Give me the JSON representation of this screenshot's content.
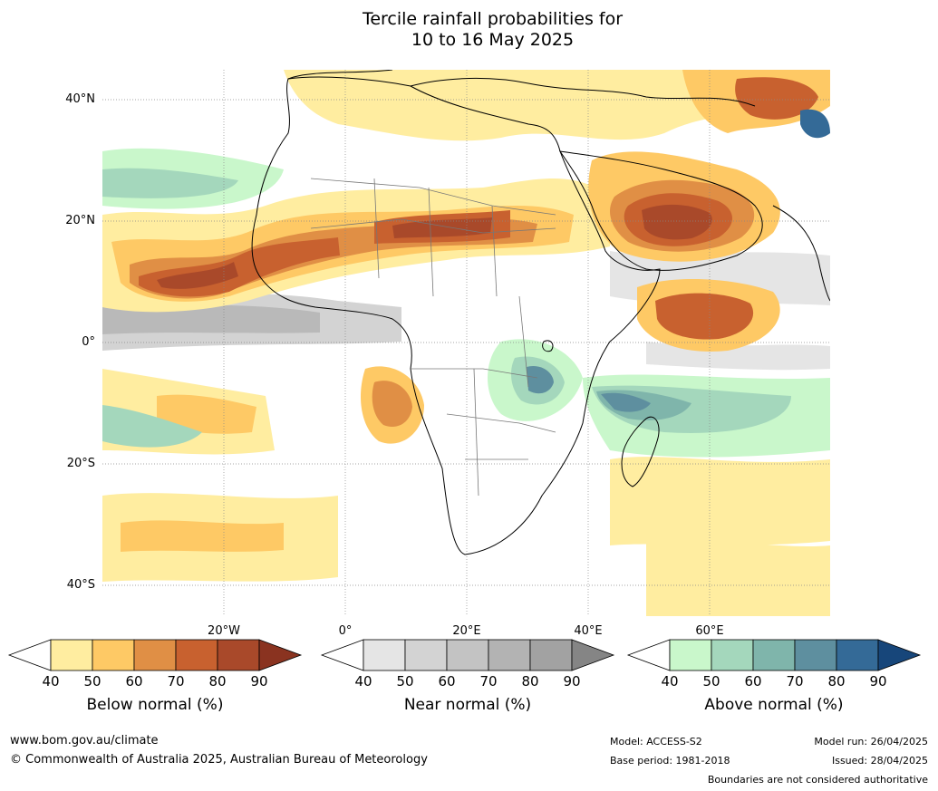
{
  "title": {
    "line1": "Tercile rainfall probabilities for",
    "line2": "10 to 16 May 2025"
  },
  "map": {
    "lat_labels": [
      "40°N",
      "20°N",
      "0°",
      "20°S",
      "40°S"
    ],
    "lon_labels": [
      "20°W",
      "0°",
      "20°E",
      "40°E",
      "60°E"
    ]
  },
  "colorbars": [
    {
      "title": "Below normal (%)",
      "ticks": [
        "40",
        "50",
        "60",
        "70",
        "80",
        "90"
      ],
      "colors": [
        "#ffffff",
        "#ffeda0",
        "#fec965",
        "#e08f45",
        "#c8612f",
        "#a9492a",
        "#8a3320"
      ]
    },
    {
      "title": "Near normal (%)",
      "ticks": [
        "40",
        "50",
        "60",
        "70",
        "80",
        "90"
      ],
      "colors": [
        "#ffffff",
        "#e5e5e5",
        "#d3d3d3",
        "#c3c3c3",
        "#b3b3b3",
        "#a2a2a2",
        "#858585"
      ]
    },
    {
      "title": "Above normal (%)",
      "ticks": [
        "40",
        "50",
        "60",
        "70",
        "80",
        "90"
      ],
      "colors": [
        "#ffffff",
        "#c9f7cb",
        "#a4d7bc",
        "#7fb5ab",
        "#5e8f9f",
        "#346a97",
        "#17467a"
      ]
    }
  ],
  "footer": {
    "website": "www.bom.gov.au/climate",
    "copyright": "© Commonwealth of Australia 2025, Australian Bureau of Meteorology",
    "model": "Model: ACCESS-S2",
    "base_period": "Base period: 1981-2018",
    "model_run": "Model run: 26/04/2025",
    "issued": "Issued: 28/04/2025",
    "disclaimer": "Boundaries are not considered authoritative"
  }
}
